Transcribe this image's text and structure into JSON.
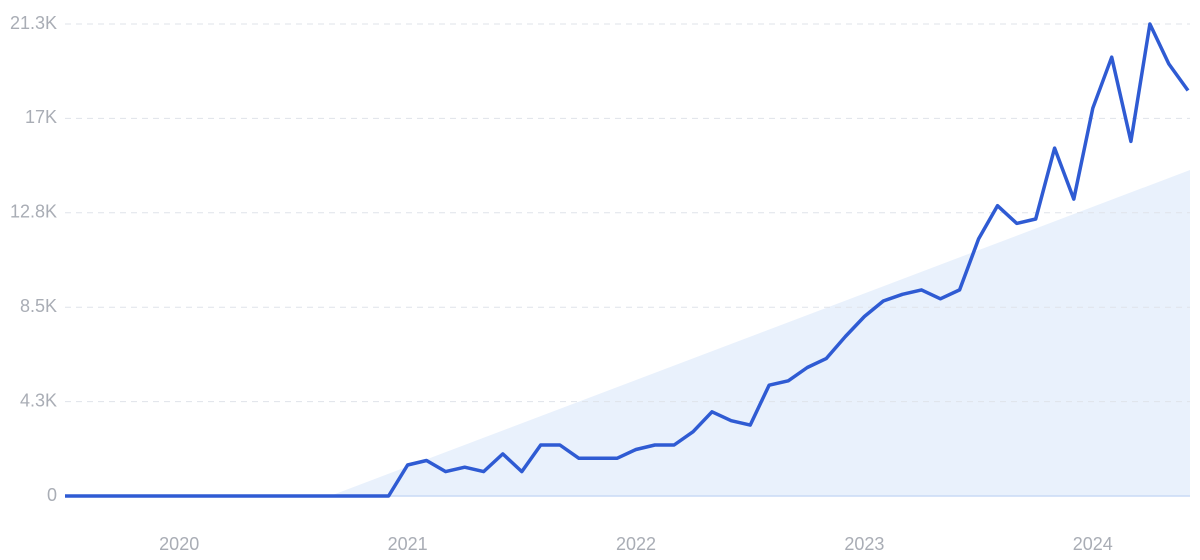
{
  "chart_data": {
    "type": "line",
    "x": [
      2019.5,
      2019.583,
      2019.667,
      2019.75,
      2019.833,
      2019.917,
      2020,
      2020.083,
      2020.167,
      2020.25,
      2020.333,
      2020.417,
      2020.5,
      2020.583,
      2020.667,
      2020.75,
      2020.833,
      2020.917,
      2021,
      2021.083,
      2021.167,
      2021.25,
      2021.333,
      2021.417,
      2021.5,
      2021.583,
      2021.667,
      2021.75,
      2021.833,
      2021.917,
      2022,
      2022.083,
      2022.167,
      2022.25,
      2022.333,
      2022.417,
      2022.5,
      2022.583,
      2022.667,
      2022.75,
      2022.833,
      2022.917,
      2023,
      2023.083,
      2023.167,
      2023.25,
      2023.333,
      2023.417,
      2023.5,
      2023.583,
      2023.667,
      2023.75,
      2023.833,
      2023.917,
      2024,
      2024.083,
      2024.167,
      2024.25,
      2024.333,
      2024.417
    ],
    "series": [
      {
        "color": "#2f5bd3",
        "values": [
          0,
          0,
          0,
          0,
          0,
          0,
          0,
          0,
          0,
          0,
          0,
          0,
          0,
          0,
          0,
          0,
          0,
          0,
          1400,
          1600,
          1100,
          1300,
          1100,
          1900,
          1100,
          2300,
          2300,
          1700,
          1700,
          1700,
          2100,
          2300,
          2300,
          2900,
          3800,
          3400,
          3200,
          5000,
          5200,
          5800,
          6200,
          7200,
          8100,
          8800,
          9100,
          9300,
          8900,
          9300,
          11600,
          13100,
          12300,
          12500,
          15700,
          13400,
          17500,
          19800,
          16000,
          21300,
          19500,
          18300
        ]
      }
    ],
    "xlim": [
      2019.5,
      2024.417
    ],
    "xticks": [
      2020,
      2021,
      2022,
      2023,
      2024
    ],
    "ylim": [
      0,
      21300
    ],
    "yticks": [
      0,
      {
        "value": 4260,
        "label": "4.3K"
      },
      {
        "value": 8520,
        "label": "8.5K"
      },
      {
        "value": 12780,
        "label": "12.8K"
      },
      {
        "value": 17040,
        "label": "17K"
      },
      {
        "value": 21300,
        "label": "21.3K"
      }
    ],
    "grid": true
  }
}
